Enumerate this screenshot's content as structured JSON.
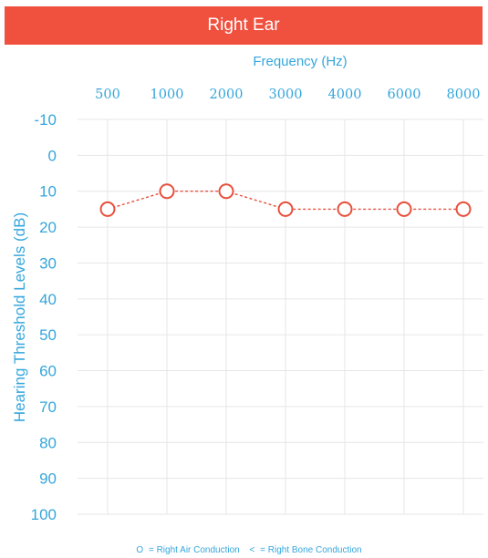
{
  "header": {
    "title": "Right Ear",
    "color": "#f0503e"
  },
  "colors": {
    "axis_text": "#35a6dc",
    "data": "#e8503c",
    "grid": "#e6e6e6"
  },
  "chart_data": {
    "type": "line",
    "title": "",
    "xlabel": "Frequency (Hz)",
    "ylabel": "Hearing Threshold Levels (dB)",
    "x_axis_position": "top",
    "y_axis_inverted": true,
    "categories": [
      "500",
      "1000",
      "2000",
      "3000",
      "4000",
      "6000",
      "8000"
    ],
    "yticks": [
      "-10",
      "0",
      "10",
      "20",
      "30",
      "40",
      "50",
      "60",
      "70",
      "80",
      "90",
      "100"
    ],
    "ylim": [
      -10,
      100
    ],
    "grid": true,
    "series": [
      {
        "name": "Right Air Conduction",
        "marker": "circle",
        "line_style": "dashed",
        "values": [
          15,
          10,
          10,
          15,
          15,
          15,
          15
        ]
      }
    ],
    "legend": {
      "placement": "bottom-center",
      "entries": [
        {
          "symbol": "O",
          "text": "= Right Air Conduction"
        },
        {
          "symbol": "<",
          "text": "= Right Bone Conduction"
        }
      ]
    }
  }
}
